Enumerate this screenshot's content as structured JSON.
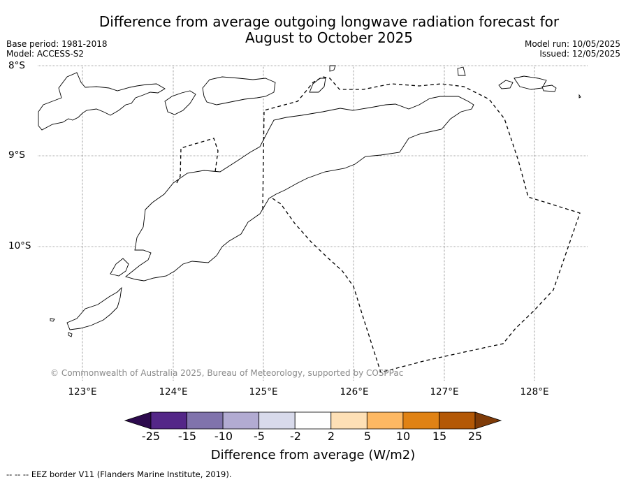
{
  "title_line1": "Difference from average outgoing longwave radiation forecast for",
  "title_line2": "August to October 2025",
  "base_period": "Base period: 1981-2018",
  "model": "Model: ACCESS-S2",
  "model_run": "Model run: 10/05/2025",
  "issued": "Issued: 12/05/2025",
  "lat_labels": [
    "8°S",
    "9°S",
    "10°S"
  ],
  "lon_labels": [
    "123°E",
    "124°E",
    "125°E",
    "126°E",
    "127°E",
    "128°E"
  ],
  "copyright": "© Commonwealth of Australia 2025, Bureau of Meteorology, supported by COSPPac",
  "colorbar": {
    "title": "Difference from average (W/m2)",
    "tick_labels": [
      "-25",
      "-15",
      "-10",
      "-5",
      "-2",
      "2",
      "5",
      "10",
      "15",
      "25"
    ],
    "colors": [
      "#2d0a4e",
      "#542788",
      "#8073ac",
      "#b2abd2",
      "#d8daeb",
      "#ffffff",
      "#fee0b6",
      "#fdb863",
      "#e08214",
      "#b35806",
      "#7f3b08"
    ]
  },
  "footer": "--  --  -- EEZ border V11 (Flanders Marine Institute, 2019)."
}
